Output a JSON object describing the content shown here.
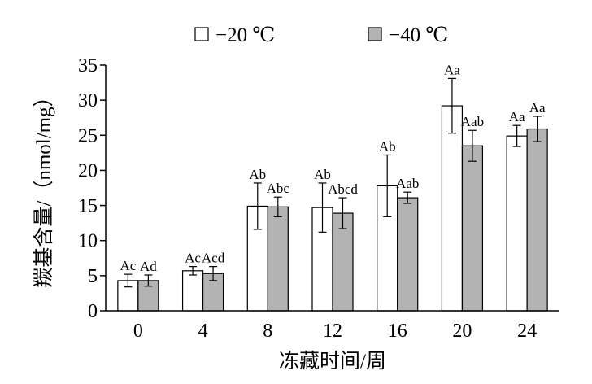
{
  "chart_data": {
    "type": "bar",
    "xlabel": "冻藏时间/周",
    "ylabel": "羰基含量/（nmol/mg）",
    "ylim": [
      0,
      35
    ],
    "yticks": [
      0,
      5,
      10,
      15,
      20,
      25,
      30,
      35
    ],
    "grid": false,
    "legend_position": "top",
    "categories": [
      "0",
      "4",
      "8",
      "12",
      "16",
      "20",
      "24"
    ],
    "series": [
      {
        "name": "−20 ℃",
        "color": "#ffffff",
        "values": [
          4.3,
          5.7,
          14.9,
          14.7,
          17.8,
          29.2,
          24.9
        ],
        "errors": [
          0.9,
          0.6,
          3.3,
          3.5,
          4.4,
          3.9,
          1.5
        ],
        "labels": [
          "Ac",
          "Ac",
          "Ab",
          "Ab",
          "Ab",
          "Aa",
          "Aa"
        ]
      },
      {
        "name": "−40 ℃",
        "color": "#b3b3b3",
        "values": [
          4.3,
          5.3,
          14.8,
          13.9,
          16.1,
          23.5,
          25.9
        ],
        "errors": [
          0.8,
          1.0,
          1.4,
          2.2,
          0.8,
          2.2,
          1.8
        ],
        "labels": [
          "Ad",
          "Acd",
          "Abc",
          "Abcd",
          "Aab",
          "Aab",
          "Aa"
        ]
      }
    ]
  }
}
